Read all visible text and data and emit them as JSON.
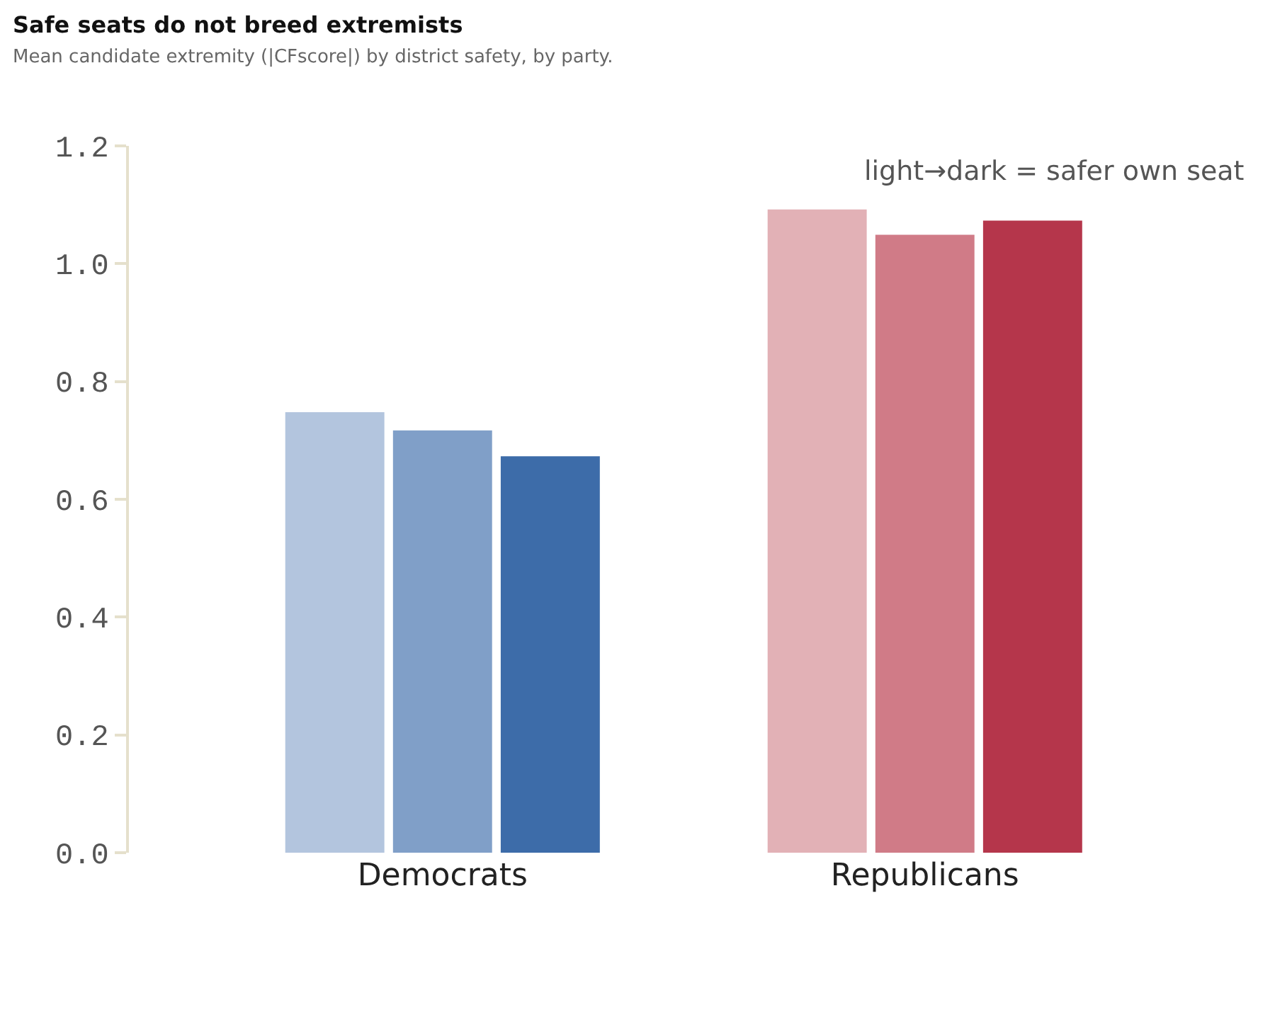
{
  "chart_data": {
    "type": "bar",
    "title": "Safe seats do not breed extremists",
    "subtitle": "Mean candidate extremity (|CFscore|) by district safety, by party.",
    "categories": [
      "Democrats",
      "Republicans"
    ],
    "series": [
      {
        "colors": [
          "#b3c5de",
          "#e2b1b6"
        ],
        "values": [
          0.748,
          1.092
        ]
      },
      {
        "colors": [
          "#809fc8",
          "#d07b87"
        ],
        "values": [
          0.717,
          1.049
        ]
      },
      {
        "colors": [
          "#3d6ca9",
          "#b5364b"
        ],
        "values": [
          0.673,
          1.073
        ]
      }
    ],
    "annotations": [
      "light→dark = safer own seat"
    ],
    "ylim": [
      0,
      1.2
    ],
    "yticks": [
      {
        "value": 0,
        "label": "0.0"
      },
      {
        "value": 0.2,
        "label": "0.2"
      },
      {
        "value": 0.4,
        "label": "0.4"
      },
      {
        "value": 0.6,
        "label": "0.6"
      },
      {
        "value": 0.8,
        "label": "0.8"
      },
      {
        "value": 1,
        "label": "1.0"
      },
      {
        "value": 1.2,
        "label": "1.2"
      }
    ]
  }
}
